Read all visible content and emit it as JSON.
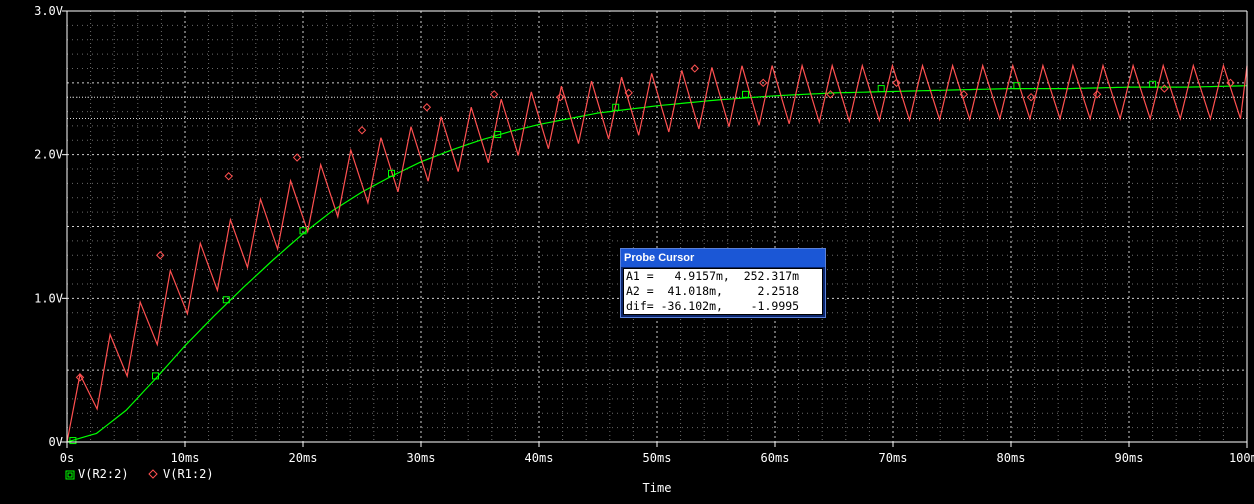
{
  "chart_data": {
    "type": "line",
    "title": "",
    "xlabel": "Time",
    "ylabel": "",
    "xlim": [
      0,
      100
    ],
    "ylim": [
      0,
      3.0
    ],
    "x_unit": "ms",
    "grid": true,
    "x_ticks": [
      {
        "value": 0,
        "label": "0s"
      },
      {
        "value": 10,
        "label": "10ms"
      },
      {
        "value": 20,
        "label": "20ms"
      },
      {
        "value": 30,
        "label": "30ms"
      },
      {
        "value": 40,
        "label": "40ms"
      },
      {
        "value": 50,
        "label": "50ms"
      },
      {
        "value": 60,
        "label": "60ms"
      },
      {
        "value": 70,
        "label": "70ms"
      },
      {
        "value": 80,
        "label": "80ms"
      },
      {
        "value": 90,
        "label": "90ms"
      },
      {
        "value": 100,
        "label": "100ms"
      }
    ],
    "y_ticks": [
      {
        "value": 0,
        "label": "0V"
      },
      {
        "value": 1.0,
        "label": "1.0V"
      },
      {
        "value": 2.0,
        "label": "2.0V"
      },
      {
        "value": 3.0,
        "label": "3.0V"
      }
    ],
    "cursor_levels": [
      2.2518,
      2.4
    ],
    "legend_placement": "bottom-left",
    "series": [
      {
        "name": "V(R2:2)",
        "color": "#00ff00",
        "marker": "square",
        "x": [
          0,
          2.5,
          5,
          7.5,
          10,
          12.5,
          15,
          17.5,
          20,
          22.5,
          25,
          27.5,
          30,
          32.5,
          35,
          37.5,
          40,
          45,
          50,
          55,
          60,
          65,
          70,
          75,
          80,
          85,
          90,
          95,
          100
        ],
        "values": [
          0.0,
          0.06,
          0.22,
          0.44,
          0.67,
          0.88,
          1.08,
          1.27,
          1.45,
          1.61,
          1.74,
          1.85,
          1.95,
          2.03,
          2.1,
          2.16,
          2.21,
          2.29,
          2.34,
          2.38,
          2.41,
          2.43,
          2.44,
          2.45,
          2.46,
          2.46,
          2.47,
          2.47,
          2.48
        ],
        "marker_x": [
          0.5,
          7.5,
          13.5,
          20,
          27.5,
          36.5,
          46.5,
          57.5,
          69,
          80.5,
          92
        ],
        "marker_y": [
          0.01,
          0.46,
          0.99,
          1.47,
          1.87,
          2.14,
          2.33,
          2.42,
          2.46,
          2.48,
          2.49
        ]
      },
      {
        "name": "V(R1:2)",
        "color": "#ff5050",
        "marker": "diamond",
        "ripple_period": 2.55,
        "ripple_rise": 1.1,
        "ripple_drop": 0.42,
        "x": [
          0,
          5,
          10,
          15,
          20,
          25,
          30,
          35,
          40,
          45,
          50,
          55,
          60,
          65,
          70,
          80,
          90,
          100
        ],
        "values": [
          0.0,
          0.45,
          0.88,
          1.2,
          1.45,
          1.65,
          1.8,
          1.93,
          2.03,
          2.1,
          2.15,
          2.19,
          2.21,
          2.23,
          2.24,
          2.25,
          2.25,
          2.25
        ],
        "marker_x": [
          1.1,
          7.9,
          13.7,
          19.5,
          25.0,
          30.5,
          36.2,
          41.8,
          47.6,
          53.2,
          59.0,
          64.7,
          70.3,
          76.0,
          81.7,
          87.3,
          93.0,
          98.6
        ],
        "marker_y": [
          0.45,
          1.3,
          1.85,
          1.98,
          2.17,
          2.33,
          2.42,
          2.4,
          2.43,
          2.6,
          2.5,
          2.42,
          2.5,
          2.42,
          2.4,
          2.42,
          2.46,
          2.5
        ]
      }
    ]
  },
  "probe_cursor": {
    "title": "Probe Cursor",
    "rows": [
      "A1 =   4.9157m,  252.317m",
      "A2 =  41.018m,     2.2518",
      "dif= -36.102m,    -1.9995"
    ]
  },
  "colors": {
    "background": "#000000",
    "grid": "#ffffff",
    "axis": "#ffffff",
    "text": "#ffffff"
  }
}
